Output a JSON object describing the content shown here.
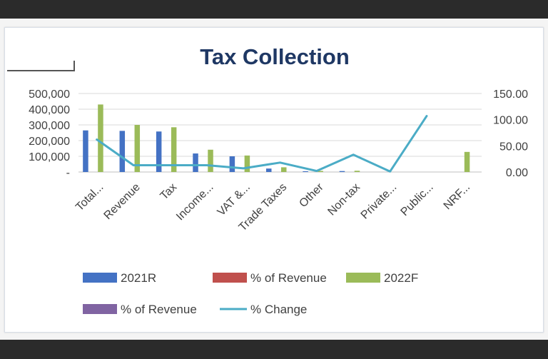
{
  "chart_data": {
    "type": "bar",
    "title": "Tax Collection",
    "categories": [
      "Total...",
      "Revenue",
      "Tax",
      "Income...",
      "VAT &...",
      "Trade Taxes",
      "Other",
      "Non-tax",
      "Private...",
      "Public...",
      "NRF..."
    ],
    "series": [
      {
        "name": "2021R",
        "axis": "left",
        "kind": "bar",
        "color": "#4472c4",
        "values": [
          265000,
          262000,
          258000,
          118000,
          100000,
          22000,
          5000,
          6000,
          0,
          0,
          0
        ]
      },
      {
        "name": "% of Revenue",
        "axis": "left",
        "kind": "bar",
        "color": "#c0504d",
        "values": [
          0,
          0,
          0,
          0,
          0,
          0,
          0,
          0,
          0,
          0,
          0
        ]
      },
      {
        "name": "2022F",
        "axis": "left",
        "kind": "bar",
        "color": "#9bbb59",
        "values": [
          430000,
          300000,
          285000,
          142000,
          105000,
          30000,
          7000,
          8000,
          0,
          0,
          128000
        ]
      },
      {
        "name": "% of Revenue",
        "axis": "left",
        "kind": "bar",
        "color": "#8064a2",
        "values": [
          0,
          0,
          0,
          0,
          0,
          0,
          0,
          0,
          0,
          0,
          0
        ]
      },
      {
        "name": "% Change",
        "axis": "right",
        "kind": "line",
        "color": "#4bacc6",
        "values": [
          62,
          13,
          13,
          13,
          7,
          18,
          2,
          33,
          1,
          107,
          null
        ]
      }
    ],
    "y_left": {
      "ylim": [
        0,
        500000
      ],
      "ticks": [
        "-",
        "100,000",
        "200,000",
        "300,000",
        "400,000",
        "500,000"
      ]
    },
    "y_right": {
      "ylim": [
        0,
        150
      ],
      "ticks": [
        "0.00",
        "50.00",
        "100.00",
        "150.00"
      ]
    },
    "grid": true,
    "legend_position": "bottom"
  }
}
